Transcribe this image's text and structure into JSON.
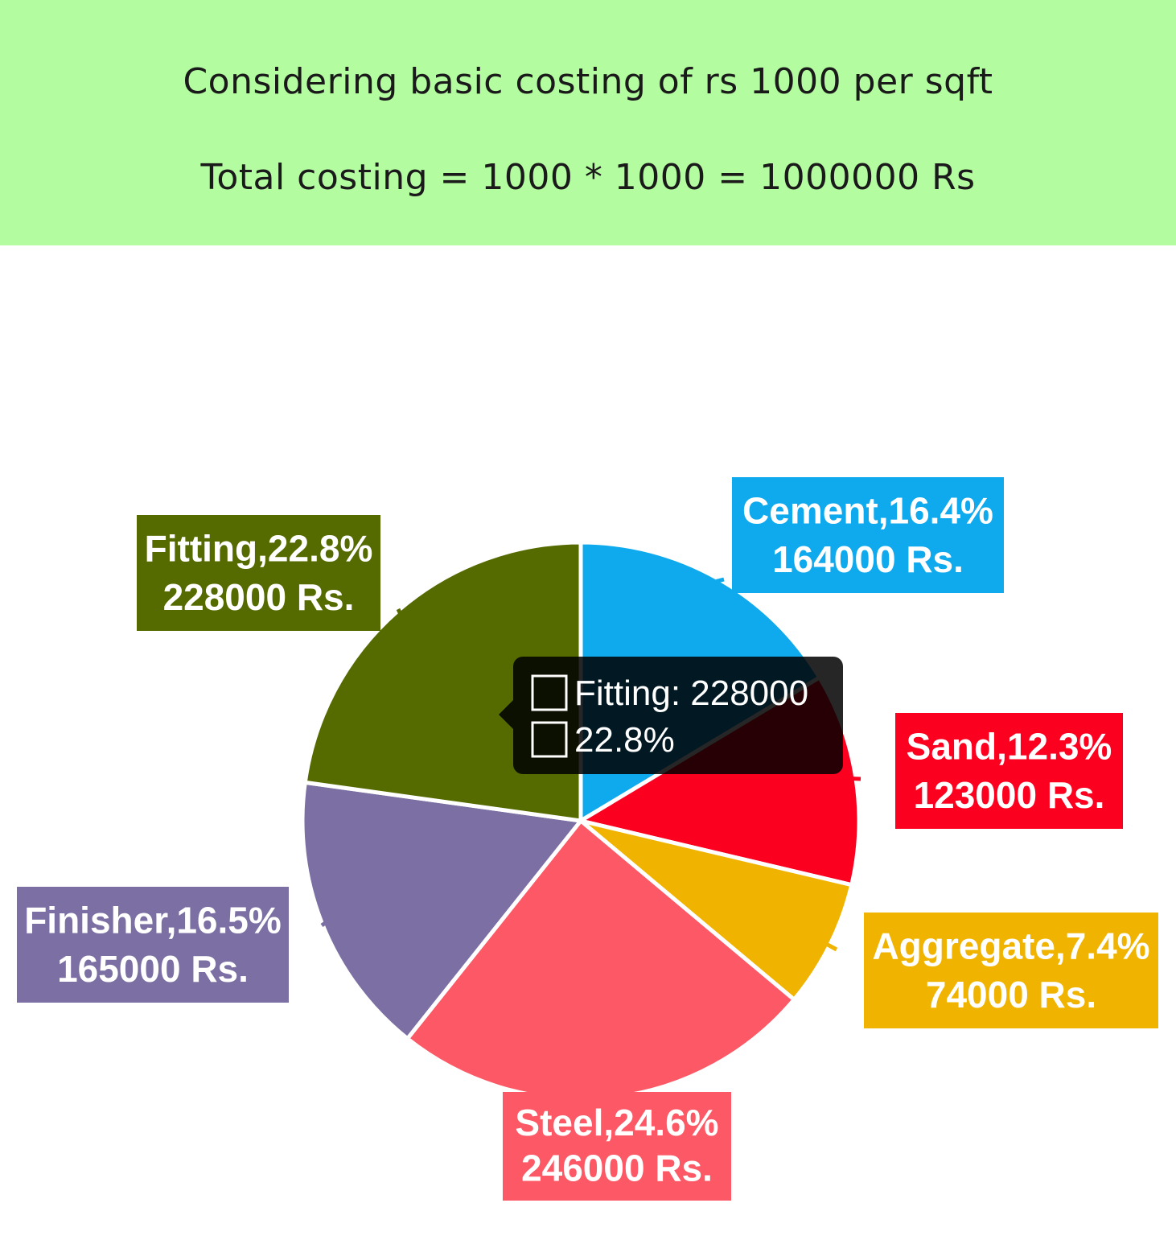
{
  "header": {
    "line1": "Considering basic costing of rs 1000 per sqft",
    "line2": "Total costing = 1000 * 1000 = 1000000 Rs",
    "background": "#b4fca0"
  },
  "chart_data": {
    "type": "pie",
    "total": 1000000,
    "slices": [
      {
        "name": "Cement",
        "value": 164000,
        "percent": 16.4,
        "color": "#0fa9ed",
        "label_line1": "Cement,16.4%",
        "label_line2": "164000 Rs."
      },
      {
        "name": "Sand",
        "value": 123000,
        "percent": 12.3,
        "color": "#fc0020",
        "label_line1": "Sand,12.3%",
        "label_line2": "123000 Rs."
      },
      {
        "name": "Aggregate",
        "value": 74000,
        "percent": 7.4,
        "color": "#f0b400",
        "label_line1": "Aggregate,7.4%",
        "label_line2": "74000 Rs."
      },
      {
        "name": "Steel",
        "value": 246000,
        "percent": 24.6,
        "color": "#fd5865",
        "label_line1": "Steel,24.6%",
        "label_line2": "246000 Rs."
      },
      {
        "name": "Finisher",
        "value": 165000,
        "percent": 16.5,
        "color": "#7b6fa3",
        "label_line1": "Finisher,16.5%",
        "label_line2": "165000 Rs."
      },
      {
        "name": "Fitting",
        "value": 228000,
        "percent": 22.8,
        "color": "#556b00",
        "label_line1": "Fitting,22.8%",
        "label_line2": "228000 Rs."
      }
    ],
    "tooltip": {
      "line1": "Fitting: 228000",
      "line2": "22.8%"
    }
  }
}
